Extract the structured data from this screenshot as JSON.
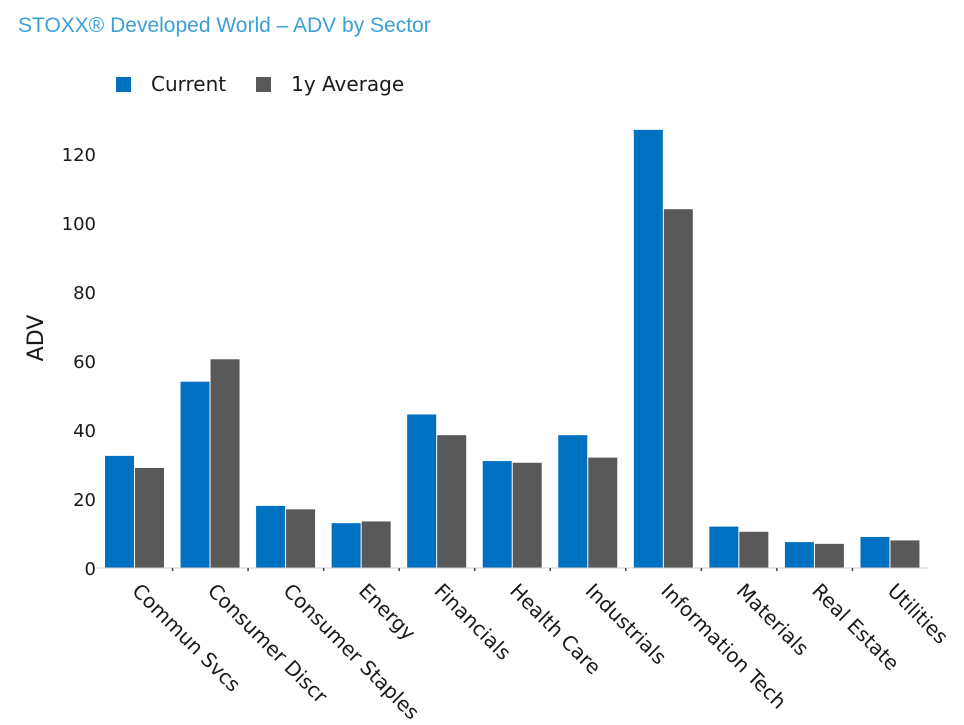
{
  "chart_data": {
    "type": "bar",
    "title": "STOXX® Developed World – ADV by Sector",
    "xlabel": "",
    "ylabel": "ADV",
    "ylim": [
      0,
      128
    ],
    "yticks": [
      0,
      20,
      40,
      60,
      80,
      100,
      120
    ],
    "categories": [
      "Commun Svcs",
      "Consumer Discr",
      "Consumer Staples",
      "Energy",
      "Financials",
      "Health Care",
      "Industrials",
      "Information Tech",
      "Materials",
      "Real Estate",
      "Utilities"
    ],
    "series": [
      {
        "name": "Current",
        "color": "#0070c0",
        "values": [
          32.5,
          54,
          18,
          13,
          44.5,
          31,
          38.5,
          127,
          12,
          7.5,
          9
        ]
      },
      {
        "name": "1y Average",
        "color": "#595959",
        "values": [
          29,
          60.5,
          17,
          13.5,
          38.5,
          30.5,
          32,
          104,
          10.5,
          7,
          8
        ]
      }
    ],
    "legend_position": "top-left",
    "grid": false
  }
}
